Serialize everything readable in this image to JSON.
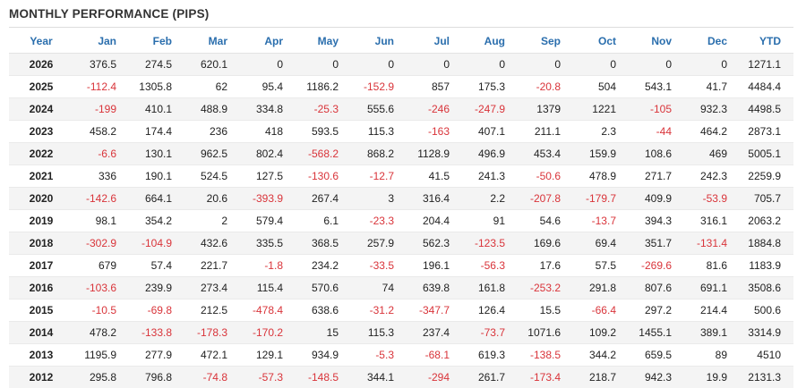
{
  "title": "MONTHLY PERFORMANCE (PIPS)",
  "headers": [
    "Year",
    "Jan",
    "Feb",
    "Mar",
    "Apr",
    "May",
    "Jun",
    "Jul",
    "Aug",
    "Sep",
    "Oct",
    "Nov",
    "Dec",
    "YTD"
  ],
  "rows": [
    [
      "2026",
      "376.5",
      "274.5",
      "620.1",
      "0",
      "0",
      "0",
      "0",
      "0",
      "0",
      "0",
      "0",
      "0",
      "1271.1"
    ],
    [
      "2025",
      "-112.4",
      "1305.8",
      "62",
      "95.4",
      "1186.2",
      "-152.9",
      "857",
      "175.3",
      "-20.8",
      "504",
      "543.1",
      "41.7",
      "4484.4"
    ],
    [
      "2024",
      "-199",
      "410.1",
      "488.9",
      "334.8",
      "-25.3",
      "555.6",
      "-246",
      "-247.9",
      "1379",
      "1221",
      "-105",
      "932.3",
      "4498.5"
    ],
    [
      "2023",
      "458.2",
      "174.4",
      "236",
      "418",
      "593.5",
      "115.3",
      "-163",
      "407.1",
      "211.1",
      "2.3",
      "-44",
      "464.2",
      "2873.1"
    ],
    [
      "2022",
      "-6.6",
      "130.1",
      "962.5",
      "802.4",
      "-568.2",
      "868.2",
      "1128.9",
      "496.9",
      "453.4",
      "159.9",
      "108.6",
      "469",
      "5005.1"
    ],
    [
      "2021",
      "336",
      "190.1",
      "524.5",
      "127.5",
      "-130.6",
      "-12.7",
      "41.5",
      "241.3",
      "-50.6",
      "478.9",
      "271.7",
      "242.3",
      "2259.9"
    ],
    [
      "2020",
      "-142.6",
      "664.1",
      "20.6",
      "-393.9",
      "267.4",
      "3",
      "316.4",
      "2.2",
      "-207.8",
      "-179.7",
      "409.9",
      "-53.9",
      "705.7"
    ],
    [
      "2019",
      "98.1",
      "354.2",
      "2",
      "579.4",
      "6.1",
      "-23.3",
      "204.4",
      "91",
      "54.6",
      "-13.7",
      "394.3",
      "316.1",
      "2063.2"
    ],
    [
      "2018",
      "-302.9",
      "-104.9",
      "432.6",
      "335.5",
      "368.5",
      "257.9",
      "562.3",
      "-123.5",
      "169.6",
      "69.4",
      "351.7",
      "-131.4",
      "1884.8"
    ],
    [
      "2017",
      "679",
      "57.4",
      "221.7",
      "-1.8",
      "234.2",
      "-33.5",
      "196.1",
      "-56.3",
      "17.6",
      "57.5",
      "-269.6",
      "81.6",
      "1183.9"
    ],
    [
      "2016",
      "-103.6",
      "239.9",
      "273.4",
      "115.4",
      "570.6",
      "74",
      "639.8",
      "161.8",
      "-253.2",
      "291.8",
      "807.6",
      "691.1",
      "3508.6"
    ],
    [
      "2015",
      "-10.5",
      "-69.8",
      "212.5",
      "-478.4",
      "638.6",
      "-31.2",
      "-347.7",
      "126.4",
      "15.5",
      "-66.4",
      "297.2",
      "214.4",
      "500.6"
    ],
    [
      "2014",
      "478.2",
      "-133.8",
      "-178.3",
      "-170.2",
      "15",
      "115.3",
      "237.4",
      "-73.7",
      "1071.6",
      "109.2",
      "1455.1",
      "389.1",
      "3314.9"
    ],
    [
      "2013",
      "1195.9",
      "277.9",
      "472.1",
      "129.1",
      "934.9",
      "-5.3",
      "-68.1",
      "619.3",
      "-138.5",
      "344.2",
      "659.5",
      "89",
      "4510"
    ],
    [
      "2012",
      "295.8",
      "796.8",
      "-74.8",
      "-57.3",
      "-148.5",
      "344.1",
      "-294",
      "261.7",
      "-173.4",
      "218.7",
      "942.3",
      "19.9",
      "2131.3"
    ]
  ],
  "colors": {
    "header_text": "#2a6ead",
    "negative": "#d9343a",
    "stripe": "#f4f4f4"
  }
}
